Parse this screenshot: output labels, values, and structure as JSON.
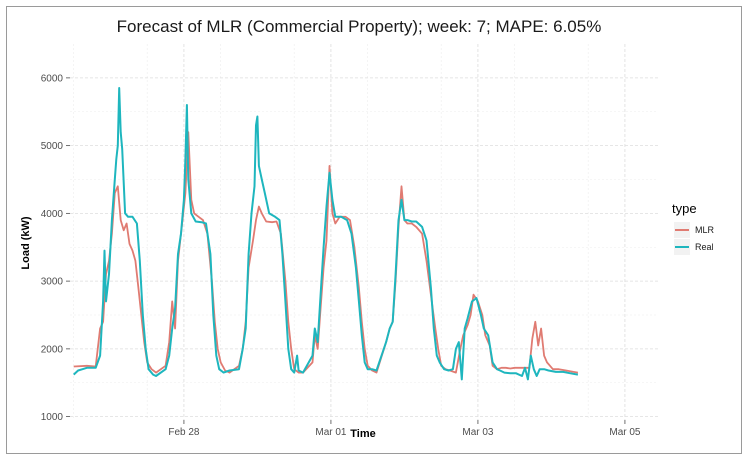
{
  "chart_data": {
    "type": "line",
    "title": "Forecast of MLR (Commercial Property); week: 7; MAPE: 6.05%",
    "xlabel": "Time",
    "ylabel": "Load (kW)",
    "x_ticks": [
      {
        "x": 1.5,
        "label": "Feb 28"
      },
      {
        "x": 3.5,
        "label": "Mar 01"
      },
      {
        "x": 5.5,
        "label": "Mar 03"
      },
      {
        "x": 7.5,
        "label": "Mar 05"
      }
    ],
    "xlim": [
      -0.05,
      7.95
    ],
    "ylim": [
      950,
      6500
    ],
    "y_ticks": [
      1000,
      2000,
      3000,
      4000,
      5000,
      6000
    ],
    "grid": true,
    "legend": {
      "title": "type",
      "position": "right"
    },
    "series": [
      {
        "name": "MLR",
        "color": "#e07b72",
        "points": [
          [
            0.0,
            1740
          ],
          [
            0.18,
            1750
          ],
          [
            0.3,
            1740
          ],
          [
            0.36,
            2300
          ],
          [
            0.4,
            2400
          ],
          [
            0.44,
            3100
          ],
          [
            0.48,
            3300
          ],
          [
            0.52,
            3700
          ],
          [
            0.56,
            4300
          ],
          [
            0.6,
            4400
          ],
          [
            0.64,
            3900
          ],
          [
            0.68,
            3750
          ],
          [
            0.72,
            3850
          ],
          [
            0.76,
            3550
          ],
          [
            0.8,
            3450
          ],
          [
            0.84,
            3300
          ],
          [
            0.88,
            2900
          ],
          [
            0.92,
            2500
          ],
          [
            0.96,
            2100
          ],
          [
            1.0,
            1800
          ],
          [
            1.06,
            1700
          ],
          [
            1.12,
            1650
          ],
          [
            1.25,
            1750
          ],
          [
            1.3,
            2100
          ],
          [
            1.34,
            2700
          ],
          [
            1.38,
            2300
          ],
          [
            1.42,
            3300
          ],
          [
            1.48,
            3900
          ],
          [
            1.52,
            4300
          ],
          [
            1.56,
            5200
          ],
          [
            1.6,
            4200
          ],
          [
            1.64,
            4000
          ],
          [
            1.7,
            3950
          ],
          [
            1.76,
            3900
          ],
          [
            1.82,
            3700
          ],
          [
            1.88,
            3000
          ],
          [
            1.92,
            2400
          ],
          [
            1.96,
            2000
          ],
          [
            2.0,
            1800
          ],
          [
            2.06,
            1680
          ],
          [
            2.12,
            1650
          ],
          [
            2.25,
            1750
          ],
          [
            2.3,
            2000
          ],
          [
            2.34,
            2400
          ],
          [
            2.38,
            3200
          ],
          [
            2.44,
            3600
          ],
          [
            2.48,
            3900
          ],
          [
            2.52,
            4100
          ],
          [
            2.56,
            4000
          ],
          [
            2.62,
            3880
          ],
          [
            2.7,
            3870
          ],
          [
            2.76,
            3880
          ],
          [
            2.82,
            3700
          ],
          [
            2.88,
            3000
          ],
          [
            2.92,
            2400
          ],
          [
            2.96,
            2000
          ],
          [
            3.0,
            1700
          ],
          [
            3.06,
            1650
          ],
          [
            3.12,
            1650
          ],
          [
            3.25,
            1800
          ],
          [
            3.28,
            2200
          ],
          [
            3.32,
            2000
          ],
          [
            3.36,
            2600
          ],
          [
            3.4,
            3200
          ],
          [
            3.44,
            3600
          ],
          [
            3.48,
            4700
          ],
          [
            3.52,
            4000
          ],
          [
            3.56,
            3850
          ],
          [
            3.62,
            3950
          ],
          [
            3.7,
            3950
          ],
          [
            3.76,
            3900
          ],
          [
            3.82,
            3500
          ],
          [
            3.88,
            2900
          ],
          [
            3.92,
            2400
          ],
          [
            3.96,
            2000
          ],
          [
            4.0,
            1750
          ],
          [
            4.06,
            1680
          ],
          [
            4.12,
            1650
          ],
          [
            4.25,
            2100
          ],
          [
            4.3,
            2300
          ],
          [
            4.34,
            2400
          ],
          [
            4.38,
            3000
          ],
          [
            4.42,
            3800
          ],
          [
            4.46,
            4400
          ],
          [
            4.5,
            3900
          ],
          [
            4.54,
            3850
          ],
          [
            4.6,
            3850
          ],
          [
            4.66,
            3800
          ],
          [
            4.74,
            3700
          ],
          [
            4.8,
            3300
          ],
          [
            4.86,
            2800
          ],
          [
            4.92,
            2300
          ],
          [
            4.96,
            2000
          ],
          [
            5.0,
            1750
          ],
          [
            5.06,
            1700
          ],
          [
            5.12,
            1680
          ],
          [
            5.2,
            1650
          ],
          [
            5.26,
            2000
          ],
          [
            5.3,
            2200
          ],
          [
            5.36,
            2350
          ],
          [
            5.4,
            2500
          ],
          [
            5.44,
            2800
          ],
          [
            5.5,
            2700
          ],
          [
            5.56,
            2500
          ],
          [
            5.6,
            2200
          ],
          [
            5.66,
            2050
          ],
          [
            5.7,
            1750
          ],
          [
            5.76,
            1700
          ],
          [
            5.82,
            1720
          ],
          [
            5.88,
            1720
          ],
          [
            5.94,
            1710
          ],
          [
            6.0,
            1720
          ],
          [
            6.1,
            1720
          ],
          [
            6.2,
            1720
          ],
          [
            6.24,
            2150
          ],
          [
            6.28,
            2400
          ],
          [
            6.32,
            2050
          ],
          [
            6.36,
            2300
          ],
          [
            6.4,
            1900
          ],
          [
            6.44,
            1800
          ],
          [
            6.48,
            1750
          ],
          [
            6.52,
            1700
          ],
          [
            6.6,
            1700
          ],
          [
            6.7,
            1680
          ],
          [
            6.8,
            1660
          ],
          [
            6.86,
            1650
          ]
        ]
      },
      {
        "name": "Real",
        "color": "#1eb6be",
        "points": [
          [
            0.0,
            1620
          ],
          [
            0.06,
            1680
          ],
          [
            0.12,
            1700
          ],
          [
            0.18,
            1720
          ],
          [
            0.24,
            1720
          ],
          [
            0.3,
            1720
          ],
          [
            0.36,
            1900
          ],
          [
            0.4,
            2700
          ],
          [
            0.42,
            3450
          ],
          [
            0.44,
            2700
          ],
          [
            0.48,
            3100
          ],
          [
            0.52,
            3900
          ],
          [
            0.56,
            4500
          ],
          [
            0.58,
            4800
          ],
          [
            0.6,
            5000
          ],
          [
            0.62,
            5850
          ],
          [
            0.64,
            5200
          ],
          [
            0.66,
            4950
          ],
          [
            0.7,
            4000
          ],
          [
            0.74,
            3950
          ],
          [
            0.8,
            3950
          ],
          [
            0.86,
            3850
          ],
          [
            0.9,
            3300
          ],
          [
            0.94,
            2500
          ],
          [
            0.98,
            2000
          ],
          [
            1.02,
            1700
          ],
          [
            1.08,
            1620
          ],
          [
            1.12,
            1600
          ],
          [
            1.25,
            1700
          ],
          [
            1.3,
            1900
          ],
          [
            1.34,
            2300
          ],
          [
            1.38,
            2600
          ],
          [
            1.42,
            3400
          ],
          [
            1.46,
            3700
          ],
          [
            1.5,
            4200
          ],
          [
            1.52,
            4800
          ],
          [
            1.54,
            5600
          ],
          [
            1.56,
            4500
          ],
          [
            1.6,
            4000
          ],
          [
            1.66,
            3880
          ],
          [
            1.74,
            3870
          ],
          [
            1.8,
            3850
          ],
          [
            1.86,
            3400
          ],
          [
            1.9,
            2500
          ],
          [
            1.94,
            1900
          ],
          [
            1.98,
            1700
          ],
          [
            2.04,
            1650
          ],
          [
            2.12,
            1680
          ],
          [
            2.25,
            1700
          ],
          [
            2.3,
            2000
          ],
          [
            2.34,
            2300
          ],
          [
            2.38,
            3400
          ],
          [
            2.42,
            4000
          ],
          [
            2.46,
            4400
          ],
          [
            2.48,
            5300
          ],
          [
            2.5,
            5430
          ],
          [
            2.52,
            4700
          ],
          [
            2.56,
            4500
          ],
          [
            2.6,
            4300
          ],
          [
            2.66,
            4000
          ],
          [
            2.74,
            3950
          ],
          [
            2.8,
            3900
          ],
          [
            2.84,
            3400
          ],
          [
            2.88,
            2700
          ],
          [
            2.92,
            2000
          ],
          [
            2.96,
            1700
          ],
          [
            3.0,
            1650
          ],
          [
            3.04,
            1900
          ],
          [
            3.06,
            1680
          ],
          [
            3.12,
            1650
          ],
          [
            3.25,
            1900
          ],
          [
            3.28,
            2300
          ],
          [
            3.32,
            2100
          ],
          [
            3.36,
            2800
          ],
          [
            3.4,
            3500
          ],
          [
            3.44,
            4100
          ],
          [
            3.48,
            4600
          ],
          [
            3.52,
            4200
          ],
          [
            3.56,
            3950
          ],
          [
            3.64,
            3950
          ],
          [
            3.72,
            3900
          ],
          [
            3.78,
            3700
          ],
          [
            3.84,
            3200
          ],
          [
            3.88,
            2700
          ],
          [
            3.92,
            2200
          ],
          [
            3.96,
            1800
          ],
          [
            4.0,
            1700
          ],
          [
            4.06,
            1700
          ],
          [
            4.12,
            1680
          ],
          [
            4.25,
            2100
          ],
          [
            4.3,
            2300
          ],
          [
            4.34,
            2400
          ],
          [
            4.38,
            3100
          ],
          [
            4.42,
            3900
          ],
          [
            4.46,
            4200
          ],
          [
            4.5,
            3900
          ],
          [
            4.54,
            3900
          ],
          [
            4.6,
            3880
          ],
          [
            4.66,
            3880
          ],
          [
            4.74,
            3800
          ],
          [
            4.8,
            3600
          ],
          [
            4.86,
            2900
          ],
          [
            4.9,
            2300
          ],
          [
            4.94,
            1900
          ],
          [
            4.98,
            1800
          ],
          [
            5.04,
            1700
          ],
          [
            5.1,
            1680
          ],
          [
            5.16,
            1700
          ],
          [
            5.2,
            2000
          ],
          [
            5.24,
            2100
          ],
          [
            5.28,
            1550
          ],
          [
            5.32,
            2300
          ],
          [
            5.36,
            2450
          ],
          [
            5.42,
            2700
          ],
          [
            5.48,
            2750
          ],
          [
            5.54,
            2500
          ],
          [
            5.58,
            2300
          ],
          [
            5.64,
            2200
          ],
          [
            5.7,
            1800
          ],
          [
            5.76,
            1700
          ],
          [
            5.8,
            1680
          ],
          [
            5.86,
            1650
          ],
          [
            5.94,
            1640
          ],
          [
            6.02,
            1640
          ],
          [
            6.1,
            1600
          ],
          [
            6.14,
            1720
          ],
          [
            6.18,
            1550
          ],
          [
            6.22,
            1900
          ],
          [
            6.26,
            1700
          ],
          [
            6.3,
            1600
          ],
          [
            6.34,
            1700
          ],
          [
            6.4,
            1700
          ],
          [
            6.46,
            1680
          ],
          [
            6.56,
            1660
          ],
          [
            6.66,
            1660
          ],
          [
            6.76,
            1640
          ],
          [
            6.86,
            1620
          ]
        ]
      }
    ]
  }
}
